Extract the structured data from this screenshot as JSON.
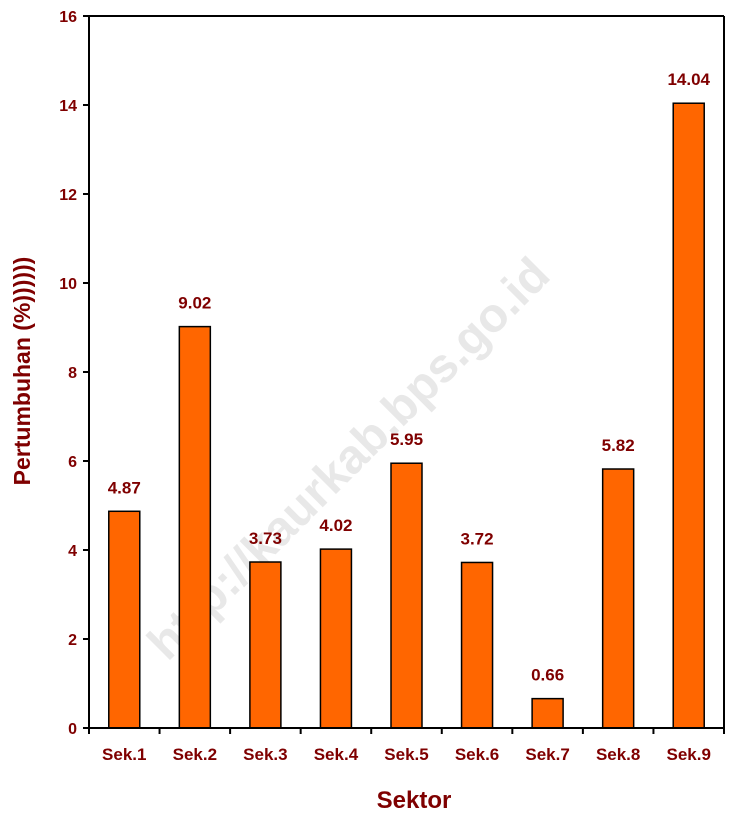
{
  "chart_data": {
    "type": "bar",
    "title": "",
    "xlabel": "Sektor",
    "ylabel": "Pertumbuhan  (%))))))",
    "categories": [
      "Sek.1",
      "Sek.2",
      "Sek.3",
      "Sek.4",
      "Sek.5",
      "Sek.6",
      "Sek.7",
      "Sek.8",
      "Sek.9"
    ],
    "values": [
      4.87,
      9.02,
      3.73,
      4.02,
      5.95,
      3.72,
      0.66,
      5.82,
      14.04
    ],
    "value_labels": [
      "4.87",
      "9.02",
      "3.73",
      "4.02",
      "5.95",
      "3.72",
      "0.66",
      "5.82",
      "14.04"
    ],
    "ylim": [
      0,
      16
    ],
    "yticks": [
      0,
      2,
      4,
      6,
      8,
      10,
      12,
      14,
      16
    ],
    "grid": false,
    "legend": "none",
    "colors": {
      "bar_fill": "#ff6600",
      "bar_stroke": "#000000",
      "text": "#7f0000",
      "axis": "#000000"
    },
    "watermark": "http://kaurkab.bps.go.id"
  }
}
